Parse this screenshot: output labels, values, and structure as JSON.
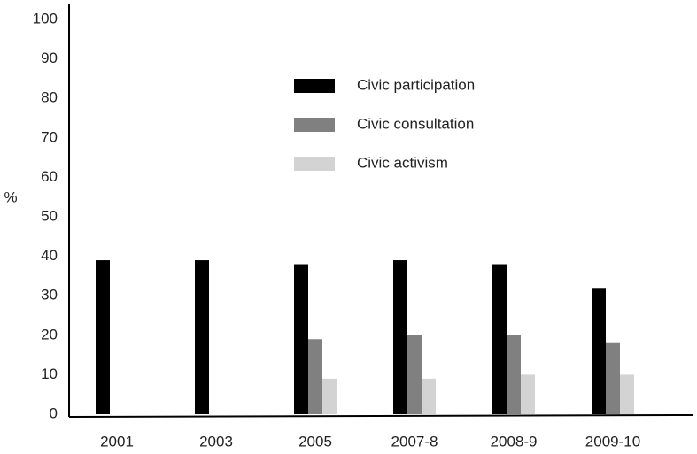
{
  "chart_data": {
    "type": "bar",
    "y_label": "%",
    "categories": [
      "2001",
      "2003",
      "2005",
      "2007-8",
      "2008-9",
      "2009-10"
    ],
    "series": [
      {
        "name": "Civic participation",
        "color": "#000000",
        "values": [
          39,
          39,
          38,
          39,
          38,
          32
        ]
      },
      {
        "name": "Civic consultation",
        "color": "#808080",
        "values": [
          null,
          null,
          19,
          20,
          20,
          18
        ]
      },
      {
        "name": "Civic activism",
        "color": "#d3d3d3",
        "values": [
          null,
          null,
          9,
          9,
          10,
          10
        ]
      }
    ],
    "ylim": [
      0,
      100
    ],
    "yticks": [
      0,
      10,
      20,
      30,
      40,
      50,
      60,
      70,
      80,
      90,
      100
    ],
    "grid": false
  }
}
